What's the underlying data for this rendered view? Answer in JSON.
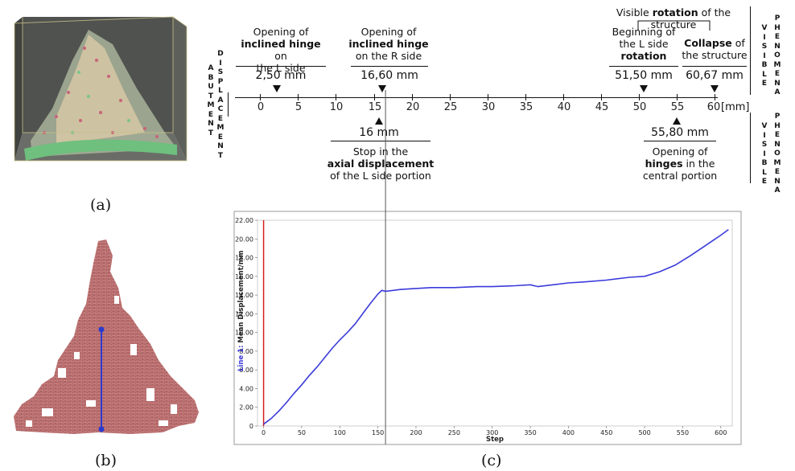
{
  "panel_labels": {
    "a": "(a)",
    "b": "(b)",
    "c": "(c)"
  },
  "side_labels": {
    "abutment_displacement": "ABUTMENT DISPLACEMENT",
    "visible_phenomena_top": "VISIBLE PHENOMENA",
    "visible_phenomena_bottom": "VISIBLE PHENOMENA"
  },
  "timeline": {
    "unit_label": "[mm]",
    "ticks": [
      "0",
      "5",
      "10",
      "15",
      "20",
      "25",
      "30",
      "35",
      "40",
      "45",
      "50",
      "55",
      "60"
    ],
    "rotation_bracket_text_pre": "Visible ",
    "rotation_bracket_text_bold": "rotation",
    "rotation_bracket_text_post": " of the structure",
    "top_events": [
      {
        "line1_pre": "Opening of",
        "line2_bold": "inclined hinge",
        "line2_post": " on",
        "line3": "the L side",
        "value": "2,50 mm"
      },
      {
        "line1_pre": "Opening of",
        "line2_bold": "inclined hinge",
        "line2_post": "",
        "line3": "on the R side",
        "value": "16,60 mm"
      },
      {
        "line1_pre": "Beginning of",
        "line2_bold": "",
        "line2_post": "the L side",
        "line3_bold": "rotation",
        "value": "51,50 mm"
      },
      {
        "line1_bold": "Collapse",
        "line1_post": " of",
        "line2_post": "the structure",
        "value": "60,67 mm"
      }
    ],
    "bottom_events": [
      {
        "value": "16 mm",
        "line1": "Stop in the",
        "line2_bold": "axial displacement",
        "line3": "of the L side portion"
      },
      {
        "value": "55,80 mm",
        "line1": "Opening of",
        "line2_bold": "hinges",
        "line2_post": " in the",
        "line3": "central portion"
      }
    ]
  },
  "colors": {
    "line": "#3b3bdb",
    "red_marker": "#d42020",
    "brick": "#b85c5c",
    "box_dark": "#5a5d58",
    "mesh_green": "#7cc48a",
    "marker_blue": "#2a3ad0"
  },
  "chart_data": {
    "type": "line",
    "title": "",
    "xlabel": "Step",
    "ylabel": "Line 1: Mean Displacement/mm",
    "ylabel_prefix": "Line 1:",
    "ylabel_rest": "Mean Displacement/mm",
    "xlim": [
      -8,
      615
    ],
    "ylim": [
      0,
      22
    ],
    "x_ticks": [
      "0",
      "50",
      "100",
      "150",
      "200",
      "250",
      "300",
      "350",
      "400",
      "450",
      "500",
      "550",
      "600"
    ],
    "y_ticks": [
      "0",
      "2.00",
      "4.00",
      "6.00",
      "8.00",
      "10.00",
      "12.00",
      "14.00",
      "16.00",
      "18.00",
      "20.00",
      "22.00"
    ],
    "vertical_marker_step": 160,
    "red_marker_step": 0,
    "series": [
      {
        "name": "Line 1",
        "x": [
          0,
          5,
          10,
          20,
          30,
          40,
          50,
          60,
          70,
          80,
          90,
          100,
          110,
          120,
          130,
          140,
          150,
          155,
          160,
          170,
          180,
          200,
          220,
          250,
          280,
          300,
          330,
          350,
          360,
          380,
          400,
          420,
          450,
          480,
          500,
          520,
          540,
          560,
          580,
          600,
          610
        ],
        "y": [
          0.2,
          0.5,
          0.8,
          1.6,
          2.5,
          3.5,
          4.4,
          5.4,
          6.3,
          7.3,
          8.3,
          9.2,
          10.0,
          10.9,
          12.0,
          13.1,
          14.1,
          14.5,
          14.4,
          14.5,
          14.6,
          14.7,
          14.8,
          14.8,
          14.9,
          14.9,
          15.0,
          15.1,
          14.9,
          15.1,
          15.3,
          15.4,
          15.6,
          15.9,
          16.0,
          16.5,
          17.2,
          18.2,
          19.3,
          20.4,
          21.0
        ]
      }
    ]
  }
}
